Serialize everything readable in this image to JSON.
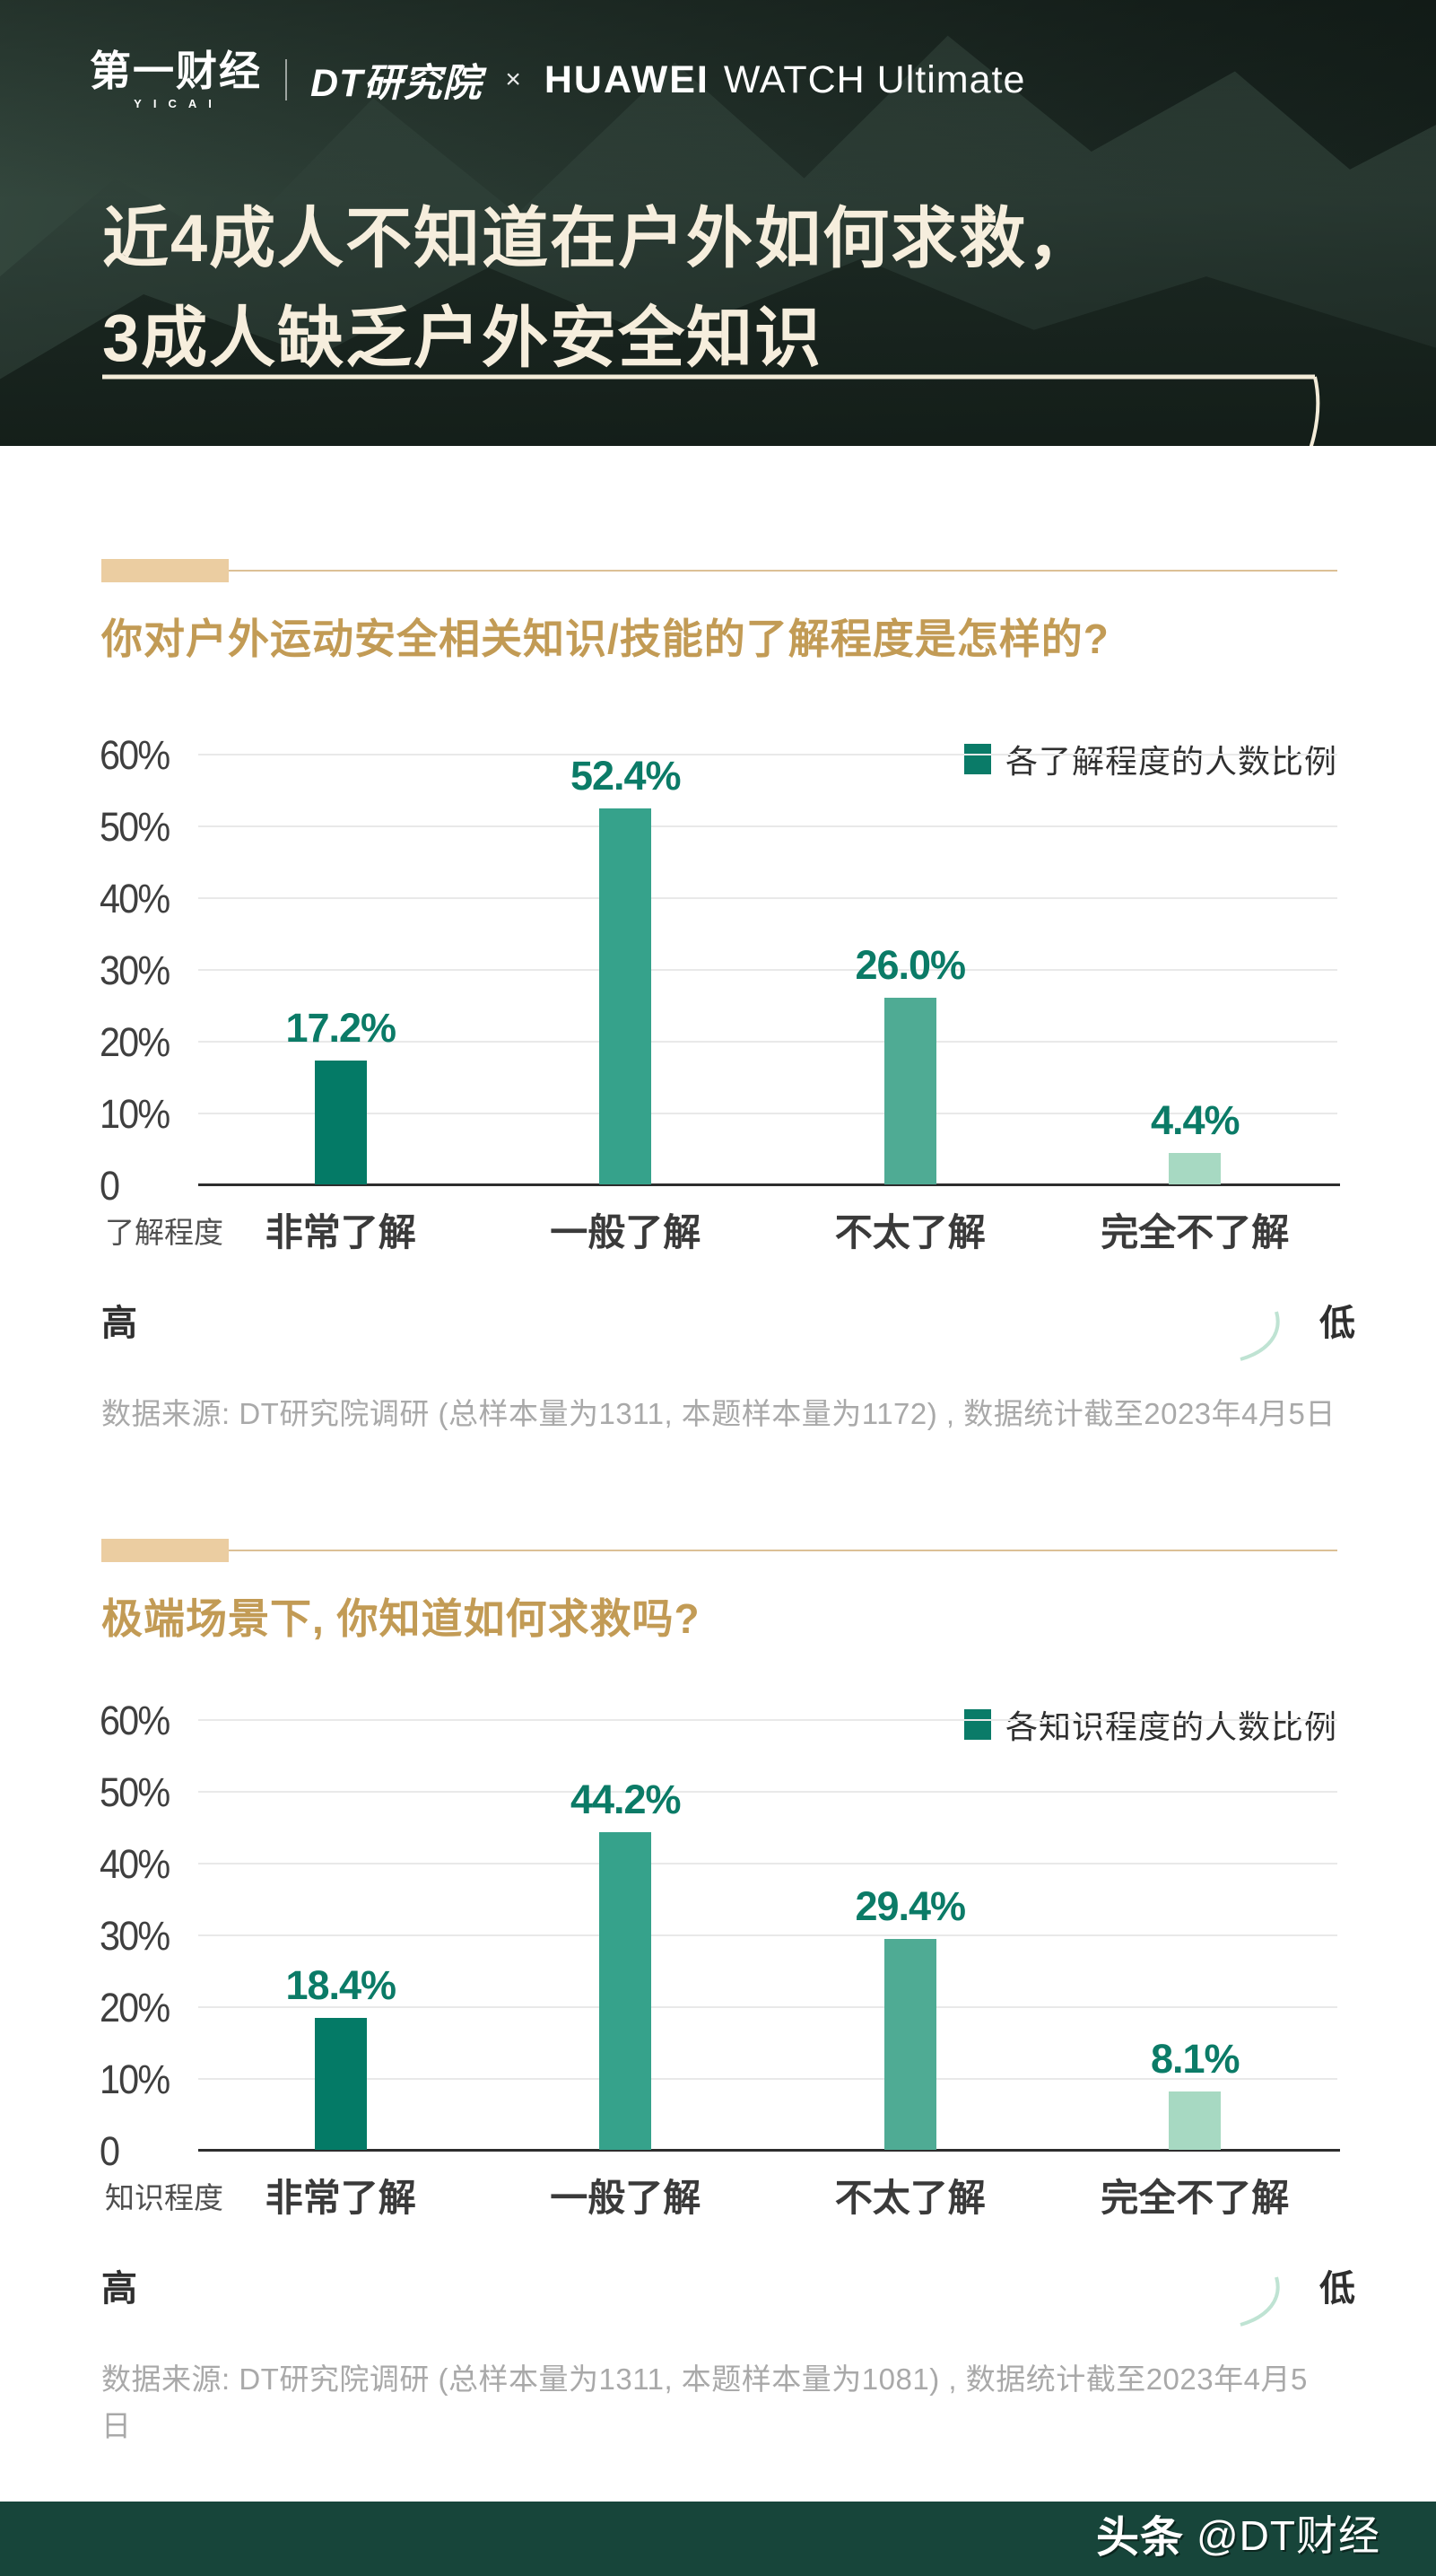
{
  "header": {
    "logos": {
      "yicai": "第一财经",
      "yicai_sub": "YICAI",
      "dt": "DT研究院",
      "cross": "×",
      "huawei": "HUAWEI",
      "watch": "WATCH Ultimate"
    },
    "title_line1": "近4成人不知道在户外如何求救，",
    "title_line2": "3成人缺乏户外安全知识"
  },
  "sections": [
    {
      "title": "你对户外运动安全相关知识/技能的了解程度是怎样的?",
      "legend": "各了解程度的人数比例",
      "axis_label": "了解程度",
      "scale_high": "高",
      "scale_low": "低",
      "source": "数据来源: DT研究院调研 (总样本量为1311, 本题样本量为1172) , 数据统计截至2023年4月5日"
    },
    {
      "title": "极端场景下, 你知道如何求救吗?",
      "legend": "各知识程度的人数比例",
      "axis_label": "知识程度",
      "scale_high": "高",
      "scale_low": "低",
      "source": "数据来源: DT研究院调研 (总样本量为1311, 本题样本量为1081) , 数据统计截至2023年4月5日"
    }
  ],
  "footer": {
    "brand": "头条",
    "handle": "@DT财经"
  },
  "colors": {
    "accent_gold": "#c29b55",
    "marker_tan": "#ebcda1",
    "value_label": "#0b7b67",
    "legend_swatch": "#0a7b68",
    "footer_bg": "#17453a",
    "hero_text": "#f6eedd",
    "scale_gradient_start": "#0f7e6a",
    "scale_gradient_end": "#cdeadd"
  },
  "chart_data": [
    {
      "type": "bar",
      "title": "你对户外运动安全相关知识/技能的了解程度是怎样的?",
      "categories": [
        "非常了解",
        "一般了解",
        "不太了解",
        "完全不了解"
      ],
      "values": [
        17.2,
        52.4,
        26.0,
        4.4
      ],
      "value_labels": [
        "17.2%",
        "52.4%",
        "26.0%",
        "4.4%"
      ],
      "legend": "各了解程度的人数比例",
      "xlabel": "了解程度",
      "ylabel": "",
      "ylim": [
        0,
        60
      ],
      "yticks": [
        "0",
        "10%",
        "20%",
        "30%",
        "40%",
        "50%",
        "60%"
      ],
      "bar_colors": [
        "#047a66",
        "#36a28b",
        "#4fab94",
        "#a7d9c2"
      ],
      "grid": true,
      "legend_position": "top-right",
      "x_scale_note": "高 → 低"
    },
    {
      "type": "bar",
      "title": "极端场景下, 你知道如何求救吗?",
      "categories": [
        "非常了解",
        "一般了解",
        "不太了解",
        "完全不了解"
      ],
      "values": [
        18.4,
        44.2,
        29.4,
        8.1
      ],
      "value_labels": [
        "18.4%",
        "44.2%",
        "29.4%",
        "8.1%"
      ],
      "legend": "各知识程度的人数比例",
      "xlabel": "知识程度",
      "ylabel": "",
      "ylim": [
        0,
        60
      ],
      "yticks": [
        "0",
        "10%",
        "20%",
        "30%",
        "40%",
        "50%",
        "60%"
      ],
      "bar_colors": [
        "#047a66",
        "#36a28b",
        "#4fab94",
        "#a7d9c2"
      ],
      "grid": true,
      "legend_position": "top-right",
      "x_scale_note": "高 → 低"
    }
  ]
}
